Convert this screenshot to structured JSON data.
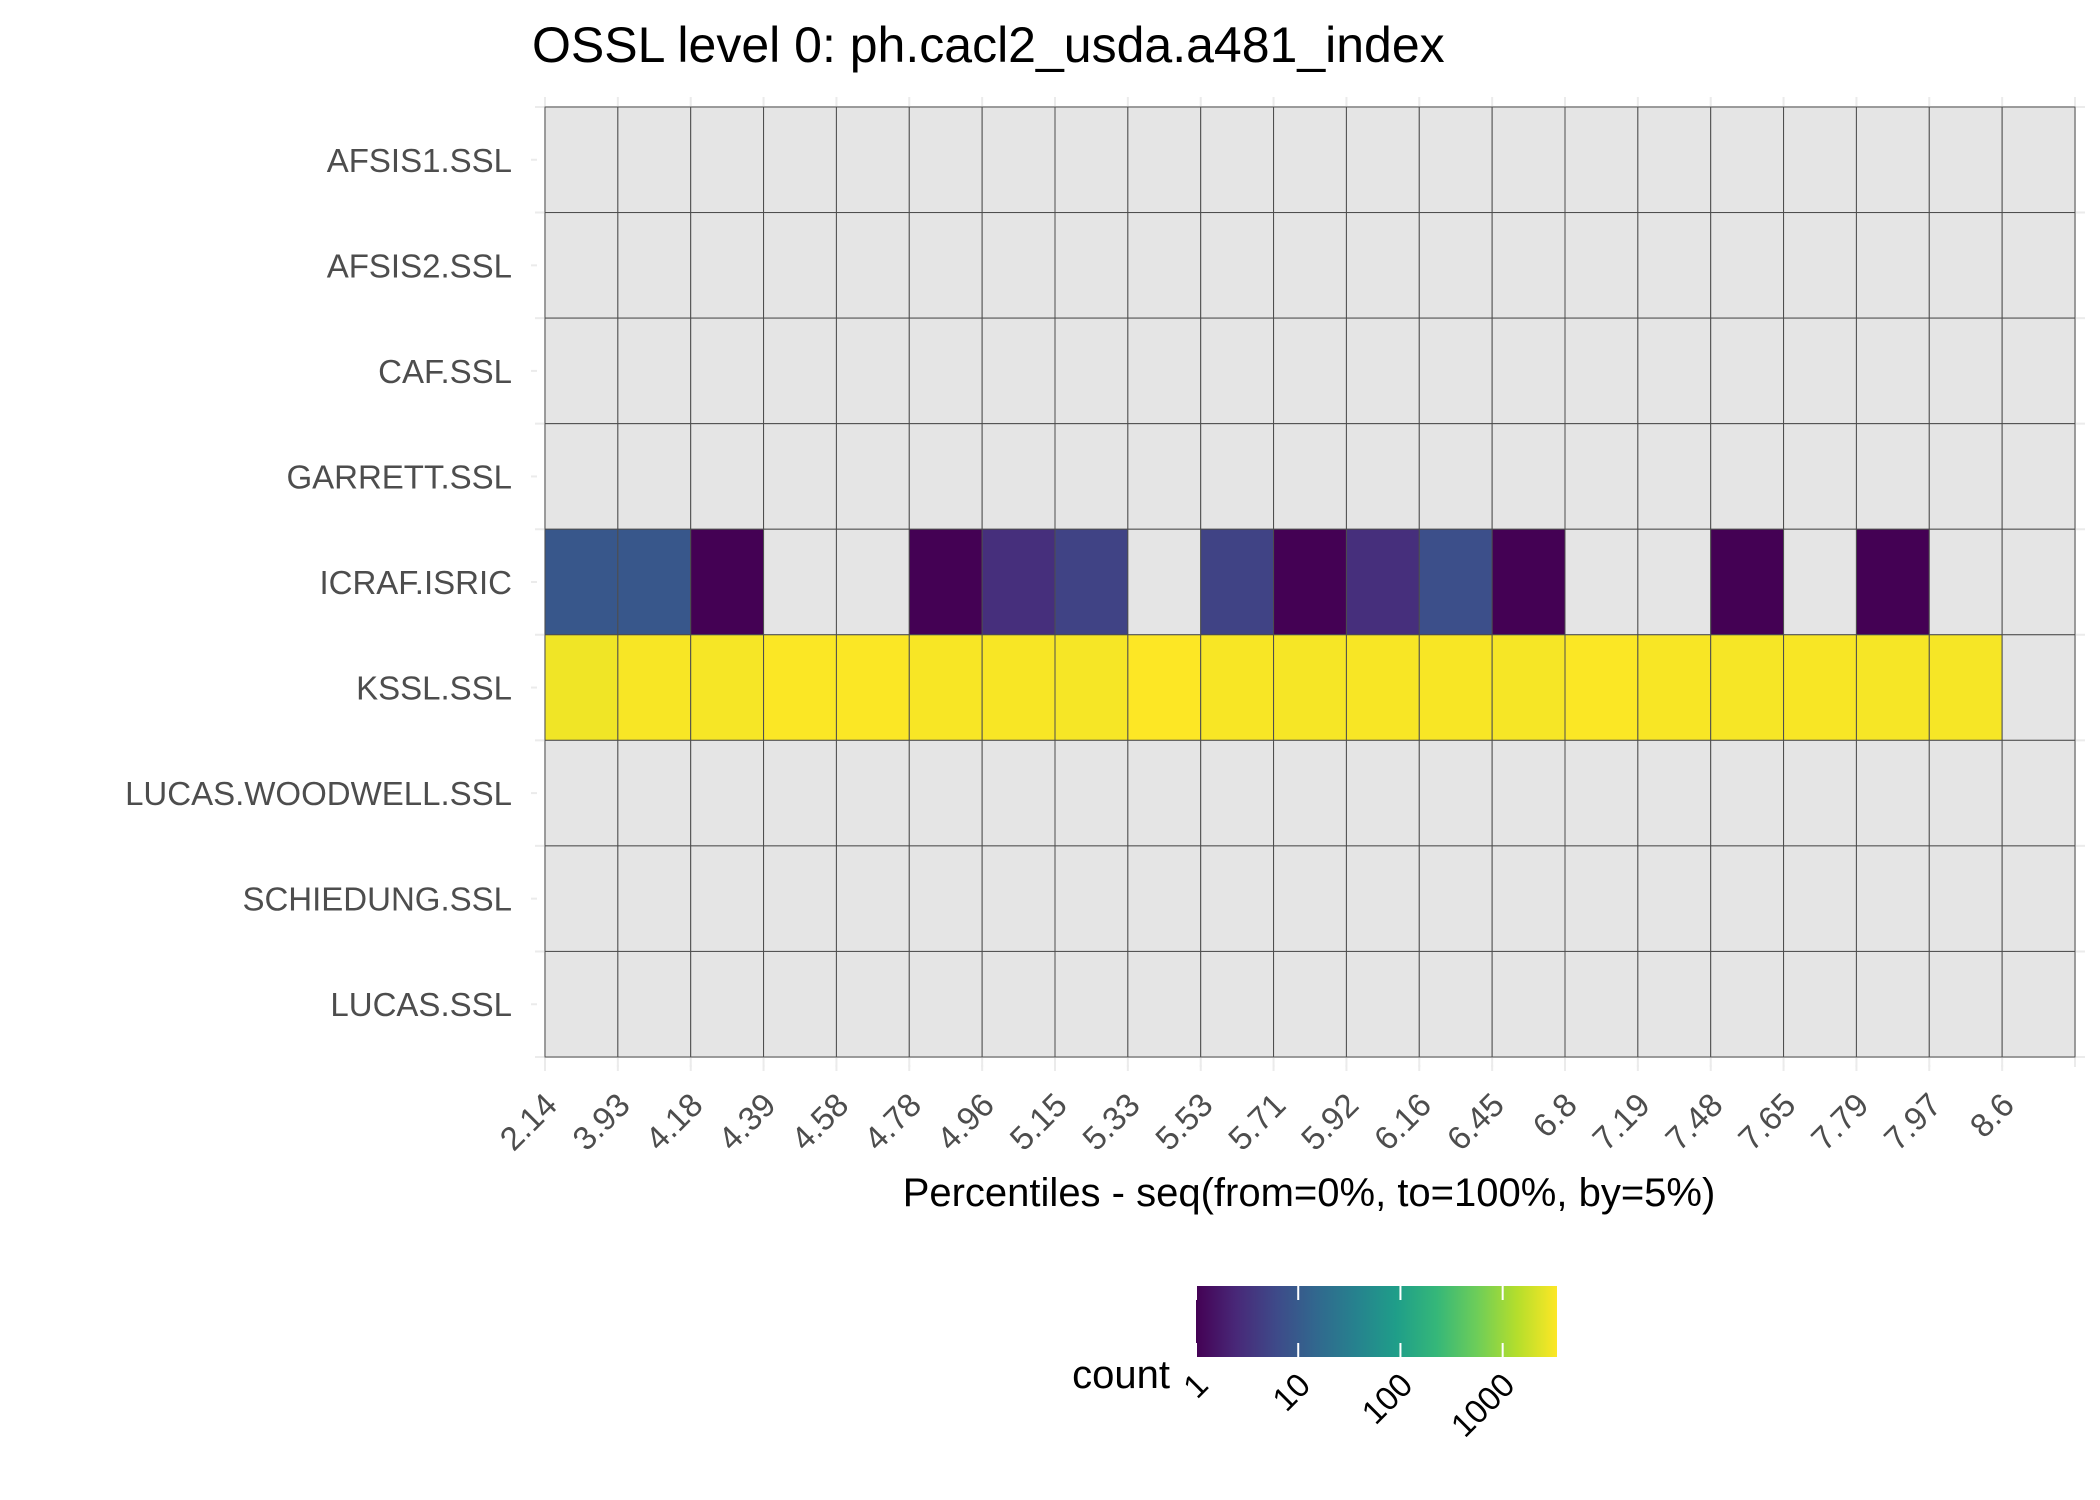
{
  "chart_data": {
    "type": "heatmap",
    "title": "OSSL level 0: ph.cacl2_usda.a481_index",
    "xlabel": "Percentiles - seq(from=0%, to=100%, by=5%)",
    "ylabel": "",
    "x_categories": [
      "2.14",
      "3.93",
      "4.18",
      "4.39",
      "4.58",
      "4.78",
      "4.96",
      "5.15",
      "5.33",
      "5.53",
      "5.71",
      "5.92",
      "6.16",
      "6.45",
      "6.8",
      "7.19",
      "7.48",
      "7.65",
      "7.79",
      "7.97",
      "8.6"
    ],
    "y_categories": [
      "AFSIS1.SSL",
      "AFSIS2.SSL",
      "CAF.SSL",
      "GARRETT.SSL",
      "ICRAF.ISRIC",
      "KSSL.SSL",
      "LUCAS.WOODWELL.SSL",
      "SCHIEDUNG.SSL",
      "LUCAS.SSL"
    ],
    "values": [
      [
        null,
        null,
        null,
        null,
        null,
        null,
        null,
        null,
        null,
        null,
        null,
        null,
        null,
        null,
        null,
        null,
        null,
        null,
        null,
        null,
        null
      ],
      [
        null,
        null,
        null,
        null,
        null,
        null,
        null,
        null,
        null,
        null,
        null,
        null,
        null,
        null,
        null,
        null,
        null,
        null,
        null,
        null,
        null
      ],
      [
        null,
        null,
        null,
        null,
        null,
        null,
        null,
        null,
        null,
        null,
        null,
        null,
        null,
        null,
        null,
        null,
        null,
        null,
        null,
        null,
        null
      ],
      [
        null,
        null,
        null,
        null,
        null,
        null,
        null,
        null,
        null,
        null,
        null,
        null,
        null,
        null,
        null,
        null,
        null,
        null,
        null,
        null,
        null
      ],
      [
        9,
        9,
        1,
        null,
        null,
        1,
        3,
        5,
        null,
        5,
        1,
        3,
        7,
        1,
        null,
        null,
        1,
        null,
        1,
        null,
        null
      ],
      [
        2900,
        3200,
        3100,
        3300,
        3300,
        3200,
        3200,
        3100,
        3400,
        3200,
        3100,
        3200,
        3200,
        3100,
        3300,
        3200,
        3100,
        3200,
        3100,
        3100,
        null
      ],
      [
        null,
        null,
        null,
        null,
        null,
        null,
        null,
        null,
        null,
        null,
        null,
        null,
        null,
        null,
        null,
        null,
        null,
        null,
        null,
        null,
        null
      ],
      [
        null,
        null,
        null,
        null,
        null,
        null,
        null,
        null,
        null,
        null,
        null,
        null,
        null,
        null,
        null,
        null,
        null,
        null,
        null,
        null,
        null
      ],
      [
        null,
        null,
        null,
        null,
        null,
        null,
        null,
        null,
        null,
        null,
        null,
        null,
        null,
        null,
        null,
        null,
        null,
        null,
        null,
        null,
        null
      ]
    ],
    "color_scale": {
      "name": "count",
      "type": "log10",
      "palette": "viridis",
      "range": [
        1,
        3400
      ],
      "breaks": [
        1,
        10,
        100,
        1000
      ],
      "break_labels": [
        "1",
        "10",
        "100",
        "1000"
      ],
      "stops": [
        "#440154",
        "#482878",
        "#3E4A89",
        "#31688E",
        "#26828E",
        "#1F9E89",
        "#35B779",
        "#6DCD59",
        "#B4DE2C",
        "#FDE725"
      ]
    },
    "na_color": "#e5e5e5",
    "grid": true,
    "legend_position": "bottom"
  }
}
